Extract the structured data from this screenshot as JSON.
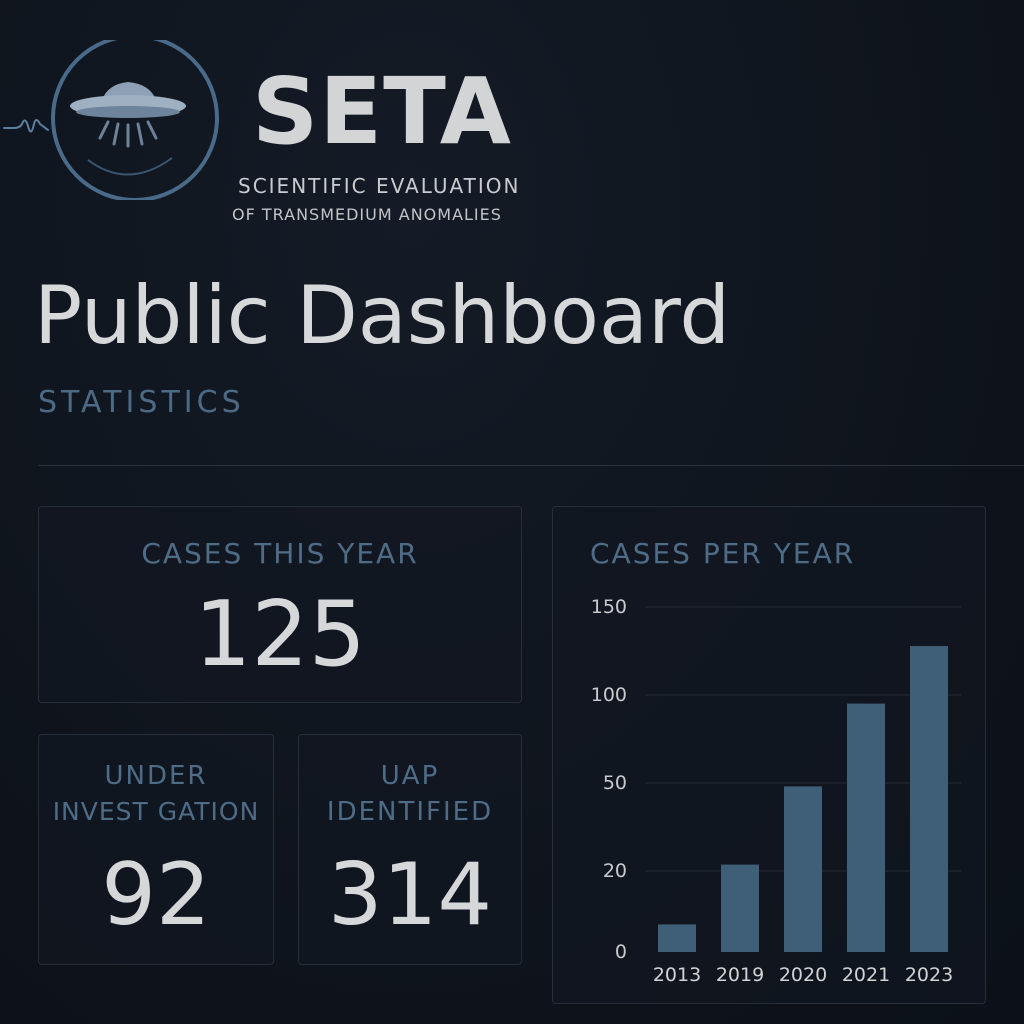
{
  "header": {
    "logo_icon": "ufo-saucer-icon",
    "brand": "SETA",
    "subtitle_line1": "SCIENTIFIC EVALUATION",
    "subtitle_line2": "OF TRANSMEDIUM ANOMALIES"
  },
  "page": {
    "title": "Public Dashboard",
    "section": "STATISTICS"
  },
  "cards": {
    "cases_this_year": {
      "label": "CASES THIS YEAR",
      "value": "125"
    },
    "under_investigation": {
      "label_line1": "UNDER",
      "label_line2": "INVEST GATION",
      "value": "92"
    },
    "uap_identified": {
      "label_line1": "UAP",
      "label_line2": "IDENTIFIED",
      "value": "314"
    }
  },
  "colors": {
    "accent": "#4f6c87",
    "bar": "#3f5f79",
    "text": "#d6d7d9",
    "background": "#0f141d"
  },
  "chart_data": {
    "type": "bar",
    "title": "CASES PER YEAR",
    "categories": [
      "2013",
      "2019",
      "2020",
      "2021",
      "2023"
    ],
    "values": [
      12,
      38,
      72,
      108,
      133
    ],
    "ytick_labels": [
      "0",
      "20",
      "50",
      "100",
      "150"
    ],
    "ylim": [
      0,
      150
    ],
    "xlabel": "",
    "ylabel": "",
    "grid": true,
    "legend": "none"
  }
}
